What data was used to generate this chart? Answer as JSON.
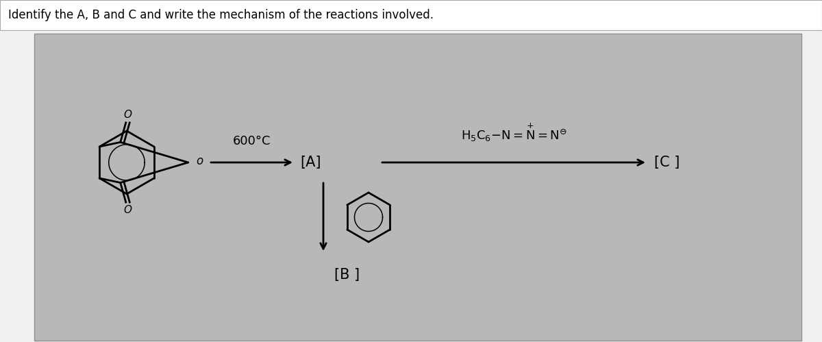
{
  "title": "Identify the A, B and C and write the mechanism of the reactions involved.",
  "title_fontsize": 12,
  "panel_bg": "#b5b5b5",
  "header_bg": "#f0f0f0",
  "header_text_color": "#000000",
  "temp_label": "600°C",
  "label_A": "[A]",
  "label_B": "[B ]",
  "label_C": "[C ]"
}
